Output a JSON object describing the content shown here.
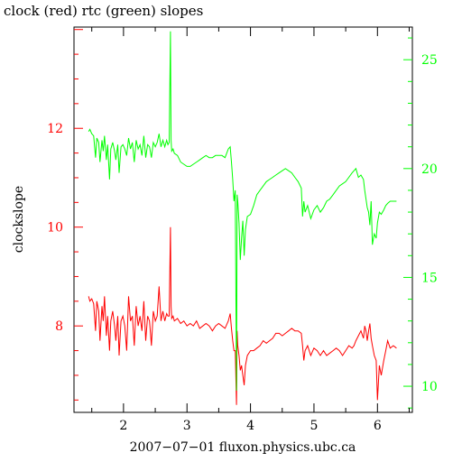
{
  "chart_data": {
    "type": "line",
    "title": "clock (red) rtc (green) slopes",
    "xlabel": "2007−07−01 fluxon.physics.ubc.ca",
    "ylabel": "clockslope",
    "xlim": [
      1.22,
      6.55
    ],
    "ylim_left": [
      6.25,
      14.05
    ],
    "ylim_right": [
      8.8,
      26.5
    ],
    "x_ticks": [
      2,
      3,
      4,
      5,
      6
    ],
    "y_ticks_left": [
      8,
      10,
      12
    ],
    "y_ticks_right": [
      10,
      15,
      20,
      25
    ],
    "grid": false,
    "colors": {
      "clock": "#ff0000",
      "rtc": "#00ff00",
      "frame": "#000000"
    },
    "series": [
      {
        "name": "clock",
        "axis": "left",
        "color": "#ff0000",
        "x": [
          1.45,
          1.47,
          1.5,
          1.53,
          1.56,
          1.58,
          1.61,
          1.63,
          1.66,
          1.68,
          1.7,
          1.73,
          1.75,
          1.78,
          1.8,
          1.83,
          1.86,
          1.88,
          1.91,
          1.93,
          1.96,
          1.99,
          2.02,
          2.05,
          2.08,
          2.11,
          2.14,
          2.17,
          2.2,
          2.23,
          2.26,
          2.29,
          2.32,
          2.35,
          2.38,
          2.41,
          2.44,
          2.47,
          2.5,
          2.53,
          2.56,
          2.59,
          2.62,
          2.65,
          2.68,
          2.7,
          2.72,
          2.74,
          2.75,
          2.76,
          2.78,
          2.8,
          2.85,
          2.9,
          2.95,
          3.0,
          3.05,
          3.1,
          3.15,
          3.2,
          3.25,
          3.3,
          3.35,
          3.4,
          3.45,
          3.5,
          3.55,
          3.6,
          3.65,
          3.68,
          3.7,
          3.72,
          3.74,
          3.76,
          3.78,
          3.79,
          3.8,
          3.82,
          3.84,
          3.86,
          3.88,
          3.9,
          3.92,
          3.95,
          4.0,
          4.05,
          4.1,
          4.15,
          4.2,
          4.25,
          4.3,
          4.35,
          4.4,
          4.45,
          4.5,
          4.55,
          4.6,
          4.65,
          4.7,
          4.75,
          4.8,
          4.82,
          4.84,
          4.86,
          4.9,
          4.95,
          5.0,
          5.05,
          5.1,
          5.15,
          5.2,
          5.25,
          5.3,
          5.35,
          5.4,
          5.45,
          5.5,
          5.55,
          5.6,
          5.63,
          5.66,
          5.7,
          5.74,
          5.78,
          5.8,
          5.82,
          5.84,
          5.86,
          5.88,
          5.9,
          5.92,
          5.95,
          5.98,
          6.0,
          6.03,
          6.06,
          6.1,
          6.13,
          6.16,
          6.2,
          6.25,
          6.3
        ],
        "y": [
          8.6,
          8.5,
          8.55,
          8.45,
          7.9,
          8.5,
          8.3,
          7.7,
          8.4,
          8.1,
          8.6,
          7.8,
          8.2,
          7.5,
          8.1,
          8.3,
          8.0,
          7.7,
          8.2,
          7.4,
          8.1,
          8.2,
          8.0,
          7.5,
          8.6,
          8.1,
          8.2,
          7.6,
          8.4,
          8.0,
          8.2,
          7.9,
          8.5,
          7.7,
          8.2,
          8.1,
          7.6,
          8.3,
          8.1,
          8.2,
          8.8,
          8.1,
          8.3,
          8.1,
          8.25,
          8.2,
          8.2,
          10.0,
          8.4,
          8.15,
          8.2,
          8.1,
          8.15,
          8.05,
          8.1,
          8.0,
          8.05,
          8.0,
          8.1,
          7.95,
          8.0,
          8.05,
          8.0,
          7.9,
          8.0,
          8.05,
          8.0,
          7.95,
          8.1,
          8.25,
          7.95,
          7.7,
          7.5,
          7.5,
          6.4,
          7.9,
          7.6,
          7.4,
          7.1,
          7.2,
          7.0,
          6.8,
          7.2,
          7.4,
          7.5,
          7.5,
          7.55,
          7.6,
          7.7,
          7.65,
          7.7,
          7.75,
          7.85,
          7.85,
          7.8,
          7.85,
          7.9,
          7.95,
          7.9,
          7.9,
          7.85,
          7.6,
          7.3,
          7.5,
          7.6,
          7.4,
          7.55,
          7.5,
          7.4,
          7.5,
          7.4,
          7.45,
          7.5,
          7.55,
          7.5,
          7.4,
          7.5,
          7.6,
          7.55,
          7.6,
          7.7,
          7.8,
          7.9,
          7.75,
          8.0,
          7.9,
          7.7,
          7.9,
          8.05,
          7.75,
          7.6,
          7.4,
          7.3,
          6.5,
          7.2,
          7.0,
          7.3,
          7.5,
          7.7,
          7.55,
          7.6,
          7.55
        ]
      },
      {
        "name": "rtc",
        "axis": "right",
        "color": "#00ff00",
        "x": [
          1.45,
          1.47,
          1.5,
          1.53,
          1.56,
          1.58,
          1.61,
          1.63,
          1.66,
          1.68,
          1.7,
          1.73,
          1.75,
          1.78,
          1.8,
          1.83,
          1.86,
          1.88,
          1.91,
          1.93,
          1.96,
          1.99,
          2.02,
          2.05,
          2.08,
          2.11,
          2.14,
          2.17,
          2.2,
          2.23,
          2.26,
          2.29,
          2.32,
          2.35,
          2.38,
          2.41,
          2.44,
          2.47,
          2.5,
          2.53,
          2.56,
          2.59,
          2.62,
          2.65,
          2.68,
          2.7,
          2.72,
          2.74,
          2.75,
          2.76,
          2.78,
          2.8,
          2.85,
          2.9,
          2.95,
          3.0,
          3.05,
          3.1,
          3.15,
          3.2,
          3.25,
          3.3,
          3.35,
          3.4,
          3.45,
          3.5,
          3.55,
          3.6,
          3.65,
          3.68,
          3.7,
          3.72,
          3.74,
          3.76,
          3.78,
          3.79,
          3.8,
          3.82,
          3.84,
          3.86,
          3.88,
          3.9,
          3.92,
          3.95,
          4.0,
          4.05,
          4.1,
          4.15,
          4.2,
          4.25,
          4.3,
          4.35,
          4.4,
          4.45,
          4.5,
          4.55,
          4.6,
          4.65,
          4.7,
          4.75,
          4.8,
          4.82,
          4.84,
          4.86,
          4.9,
          4.95,
          5.0,
          5.05,
          5.1,
          5.15,
          5.2,
          5.25,
          5.3,
          5.35,
          5.4,
          5.45,
          5.5,
          5.55,
          5.6,
          5.63,
          5.66,
          5.7,
          5.74,
          5.78,
          5.8,
          5.82,
          5.84,
          5.86,
          5.88,
          5.9,
          5.92,
          5.95,
          5.98,
          6.0,
          6.03,
          6.06,
          6.1,
          6.13,
          6.16,
          6.2,
          6.25,
          6.3
        ],
        "y": [
          21.7,
          21.8,
          21.6,
          21.5,
          20.5,
          21.4,
          21.2,
          20.3,
          21.3,
          20.8,
          21.5,
          20.4,
          21.1,
          19.5,
          20.9,
          21.2,
          20.8,
          20.4,
          21.1,
          19.8,
          21.0,
          21.1,
          20.9,
          20.6,
          21.4,
          20.9,
          21.2,
          20.3,
          21.3,
          20.9,
          21.1,
          20.6,
          21.5,
          20.5,
          21.1,
          21.0,
          20.5,
          21.2,
          21.0,
          21.2,
          21.6,
          21.0,
          21.3,
          21.0,
          21.3,
          21.1,
          21.2,
          26.3,
          21.3,
          20.8,
          20.9,
          20.7,
          20.6,
          20.3,
          20.2,
          20.1,
          20.1,
          20.2,
          20.3,
          20.4,
          20.5,
          20.6,
          20.5,
          20.5,
          20.6,
          20.6,
          20.6,
          20.5,
          20.9,
          21.0,
          20.3,
          19.5,
          18.5,
          19.0,
          9.8,
          18.8,
          18.5,
          17.5,
          15.8,
          16.8,
          17.6,
          16.0,
          17.2,
          17.8,
          17.9,
          18.3,
          18.8,
          19.0,
          19.2,
          19.4,
          19.5,
          19.6,
          19.7,
          19.8,
          19.9,
          20.0,
          19.9,
          19.8,
          19.6,
          19.4,
          19.1,
          17.8,
          18.5,
          18.0,
          18.3,
          17.7,
          18.1,
          18.3,
          18.0,
          18.2,
          18.5,
          18.6,
          18.8,
          19.0,
          19.2,
          19.3,
          19.4,
          19.6,
          19.8,
          19.9,
          20.0,
          19.6,
          19.7,
          19.5,
          19.0,
          18.6,
          18.2,
          18.0,
          17.4,
          18.5,
          16.5,
          17.0,
          16.8,
          17.5,
          18.0,
          17.9,
          18.1,
          18.3,
          18.4,
          18.5,
          18.5,
          18.5
        ]
      }
    ]
  }
}
